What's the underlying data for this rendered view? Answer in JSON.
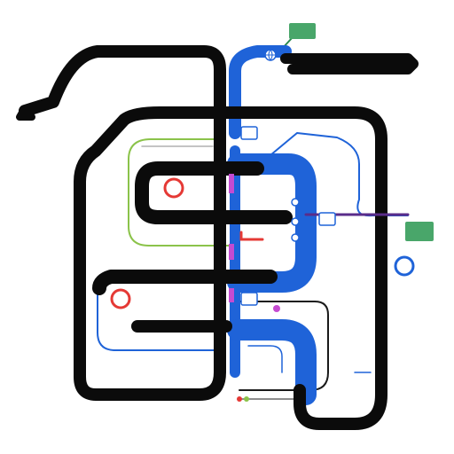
{
  "diagram": {
    "background_color": "#ffffff",
    "colors": {
      "primary_line": "#0b0b0b",
      "secondary_line": "#1f63d8",
      "accent_blue": "#2c6fe0",
      "accent_green": "#8bc34a",
      "accent_red": "#e53935",
      "accent_magenta": "#c54bd1",
      "callout_green": "#49a66a",
      "callout_text": "#ffffff"
    },
    "callouts": [
      {
        "id": "top-callout",
        "text": ""
      },
      {
        "id": "right-callout",
        "text": ""
      }
    ],
    "icons": [
      {
        "name": "globe-icon"
      },
      {
        "name": "circle-marker-icon"
      },
      {
        "name": "circle-marker-icon"
      },
      {
        "name": "circle-marker-icon"
      },
      {
        "name": "square-node-icon"
      },
      {
        "name": "square-node-icon"
      }
    ]
  }
}
